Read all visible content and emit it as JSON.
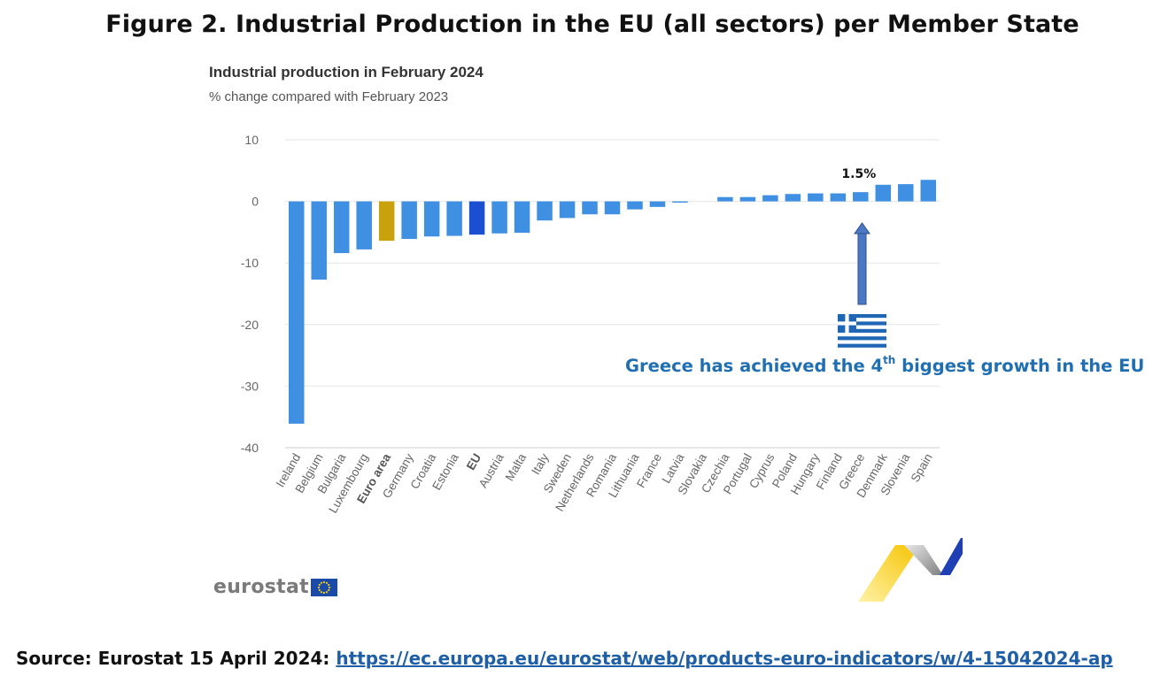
{
  "figure_title": "Figure 2. Industrial Production in the EU (all sectors) per Member State",
  "source": {
    "label": "Source: Eurostat 15 April 2024:",
    "link_text": "https://ec.europa.eu/eurostat/web/products-euro-indicators/w/4-15042024-ap"
  },
  "annotation": {
    "text_before": "Greece has achieved the 4",
    "superscript": "th",
    "text_after": " biggest growth in the EU"
  },
  "logo": {
    "text": "eurostat"
  },
  "colors": {
    "bar": "#3f8fe3",
    "euro_area": "#c9a10c",
    "eu": "#1a4fd1",
    "grid": "#e6e6e6",
    "annotation": "#1f6fb2",
    "arrow": "#4a78c4"
  },
  "chart_data": {
    "type": "bar",
    "title": "Industrial production in February 2024",
    "subtitle": "% change compared with February 2023",
    "categories": [
      "Ireland",
      "Belgium",
      "Bulgaria",
      "Luxembourg",
      "Euro area",
      "Germany",
      "Croatia",
      "Estonia",
      "EU",
      "Austria",
      "Malta",
      "Italy",
      "Sweden",
      "Netherlands",
      "Romania",
      "Lithuania",
      "France",
      "Latvia",
      "Slovakia",
      "Czechia",
      "Portugal",
      "Cyprus",
      "Poland",
      "Hungary",
      "Finland",
      "Greece",
      "Denmark",
      "Slovenia",
      "Spain"
    ],
    "values": [
      -36.1,
      -12.7,
      -8.4,
      -7.8,
      -6.4,
      -6.1,
      -5.7,
      -5.6,
      -5.4,
      -5.2,
      -5.1,
      -3.1,
      -2.7,
      -2.1,
      -2.1,
      -1.3,
      -0.9,
      -0.2,
      0.0,
      0.7,
      0.7,
      1.0,
      1.2,
      1.3,
      1.3,
      1.5,
      2.7,
      2.8,
      3.5
    ],
    "highlight": {
      "Euro area": "euro_area",
      "EU": "eu"
    },
    "bold_categories": [
      "Euro area",
      "EU"
    ],
    "data_labels": [
      {
        "category": "Greece",
        "text": "1.5%"
      }
    ],
    "y_ticks": [
      10,
      0,
      -10,
      -20,
      -30,
      -40
    ],
    "ylim": [
      -40,
      10
    ],
    "grid": true,
    "legend": "none"
  }
}
